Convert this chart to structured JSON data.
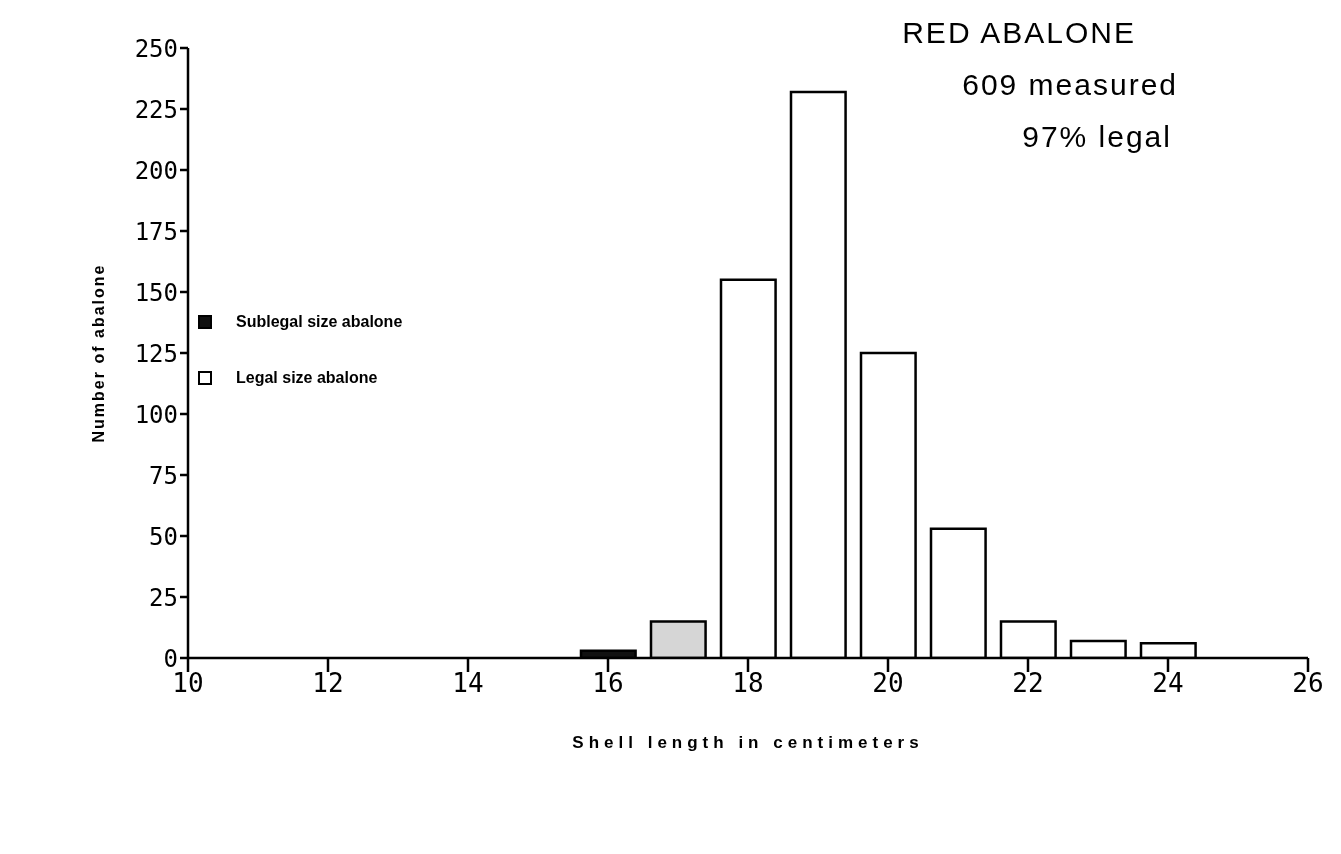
{
  "chart_data": {
    "type": "bar",
    "title": "RED ABALONE",
    "annotations": [
      "609 measured",
      "97% legal"
    ],
    "xlabel": "Shell length in centimeters",
    "ylabel": "Number of abalone",
    "x": [
      16,
      17,
      18,
      19,
      20,
      21,
      22,
      23,
      24
    ],
    "series": [
      {
        "name": "Sublegal size abalone",
        "color": "#111111",
        "colors": [
          "#111111",
          "#d6d6d6",
          "#111111",
          "#111111",
          "#111111",
          "#111111",
          "#111111",
          "#111111",
          "#111111"
        ],
        "values": [
          3,
          15,
          null,
          null,
          null,
          null,
          null,
          null,
          null
        ]
      },
      {
        "name": "Legal size abalone",
        "color": "#ffffff",
        "values": [
          null,
          null,
          155,
          232,
          125,
          53,
          15,
          7,
          6
        ]
      }
    ],
    "xlim": [
      10,
      26
    ],
    "xticks": [
      10,
      12,
      14,
      16,
      18,
      20,
      22,
      24,
      26
    ],
    "ylim": [
      0,
      250
    ],
    "yticks": [
      0,
      25,
      50,
      75,
      100,
      125,
      150,
      175,
      200,
      225,
      250
    ],
    "grid": false,
    "legend": "left"
  }
}
